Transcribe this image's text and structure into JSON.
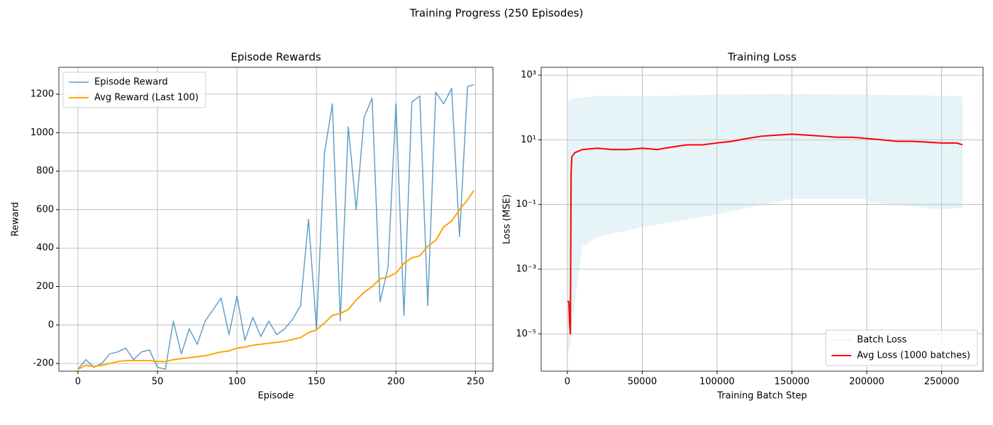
{
  "title": "Training Progress (250 Episodes)",
  "chart_data": [
    {
      "type": "line",
      "title": "Episode Rewards",
      "xlabel": "Episode",
      "ylabel": "Reward",
      "xlim": [
        -12,
        261
      ],
      "xticks": [
        0,
        50,
        100,
        150,
        200,
        250
      ],
      "ylim": [
        -240,
        1340
      ],
      "yticks": [
        -200,
        0,
        200,
        400,
        600,
        800,
        1000,
        1200
      ],
      "grid": true,
      "legend": "upper left",
      "x": [
        0,
        5,
        10,
        15,
        20,
        25,
        30,
        35,
        40,
        45,
        50,
        55,
        60,
        65,
        70,
        75,
        80,
        85,
        90,
        95,
        100,
        105,
        110,
        115,
        120,
        125,
        130,
        135,
        140,
        145,
        150,
        155,
        160,
        165,
        170,
        175,
        180,
        185,
        190,
        195,
        200,
        205,
        210,
        215,
        220,
        225,
        230,
        235,
        240,
        245,
        249
      ],
      "series": [
        {
          "name": "Episode Reward",
          "color": "#1f77b4",
          "width": 1.5,
          "opacity": 0.7,
          "values": [
            -230,
            -180,
            -220,
            -200,
            -150,
            -140,
            -120,
            -180,
            -140,
            -130,
            -220,
            -230,
            20,
            -150,
            -20,
            -100,
            20,
            80,
            140,
            -50,
            150,
            -80,
            40,
            -60,
            20,
            -50,
            -20,
            30,
            100,
            550,
            -20,
            890,
            1150,
            20,
            1030,
            600,
            1080,
            1180,
            120,
            300,
            1150,
            50,
            1160,
            1190,
            100,
            1210,
            1150,
            1230,
            460,
            1240,
            1250
          ]
        },
        {
          "name": "Avg Reward (Last 100)",
          "color": "orange",
          "width": 2,
          "opacity": 1,
          "values": [
            -230,
            -210,
            -215,
            -210,
            -200,
            -190,
            -185,
            -185,
            -185,
            -185,
            -190,
            -190,
            -180,
            -175,
            -170,
            -165,
            -160,
            -150,
            -140,
            -135,
            -120,
            -115,
            -105,
            -100,
            -95,
            -90,
            -85,
            -75,
            -65,
            -40,
            -25,
            10,
            50,
            60,
            80,
            130,
            170,
            200,
            240,
            250,
            270,
            320,
            350,
            360,
            410,
            440,
            510,
            540,
            600,
            650,
            700
          ]
        }
      ]
    },
    {
      "type": "line",
      "title": "Training Loss",
      "xlabel": "Training Batch Step",
      "ylabel": "Loss (MSE)",
      "xlim": [
        -17500,
        277700
      ],
      "xticks": [
        0,
        50000,
        100000,
        150000,
        200000,
        250000
      ],
      "ylim": [
        7e-07,
        1750
      ],
      "log_y": true,
      "yticks": [
        {
          "value": 1e-05,
          "label": "10⁻⁵"
        },
        {
          "value": 0.001,
          "label": "10⁻³"
        },
        {
          "value": 0.1,
          "label": "10⁻¹"
        },
        {
          "value": 10,
          "label": "10¹"
        },
        {
          "value": 1000,
          "label": "10³"
        }
      ],
      "grid": true,
      "legend": "lower right",
      "series": [
        {
          "name": "Batch Loss",
          "kind": "band",
          "color": "lightblue",
          "opacity": 0.3,
          "x": [
            0,
            2000,
            5000,
            10000,
            20000,
            50000,
            100000,
            150000,
            199000,
            200000,
            201000,
            250000,
            264000
          ],
          "values": [
            150,
            170,
            200,
            200,
            230,
            220,
            250,
            260,
            250,
            800,
            250,
            230,
            220
          ],
          "lower": [
            2e-06,
            5e-06,
            0.0001,
            0.005,
            0.01,
            0.02,
            0.05,
            0.15,
            0.15,
            0.15,
            0.12,
            0.07,
            0.08
          ]
        },
        {
          "name": "Avg Loss (1000 batches)",
          "kind": "line",
          "color": "red",
          "width": 2,
          "opacity": 1,
          "x": [
            0,
            1000,
            1500,
            2000,
            2500,
            3000,
            5000,
            10000,
            20000,
            30000,
            40000,
            50000,
            60000,
            70000,
            80000,
            90000,
            100000,
            110000,
            120000,
            130000,
            140000,
            150000,
            160000,
            170000,
            180000,
            190000,
            200000,
            210000,
            220000,
            230000,
            240000,
            250000,
            260000,
            264000
          ],
          "values": [
            0.0001,
            0.0001,
            2e-05,
            1e-05,
            1,
            3,
            4,
            5,
            5.5,
            5,
            5,
            5.5,
            5,
            6,
            7,
            7,
            8,
            9,
            11,
            13,
            14,
            15,
            14,
            13,
            12,
            12,
            11,
            10,
            9,
            9,
            8.5,
            8,
            8,
            7
          ]
        }
      ]
    }
  ]
}
